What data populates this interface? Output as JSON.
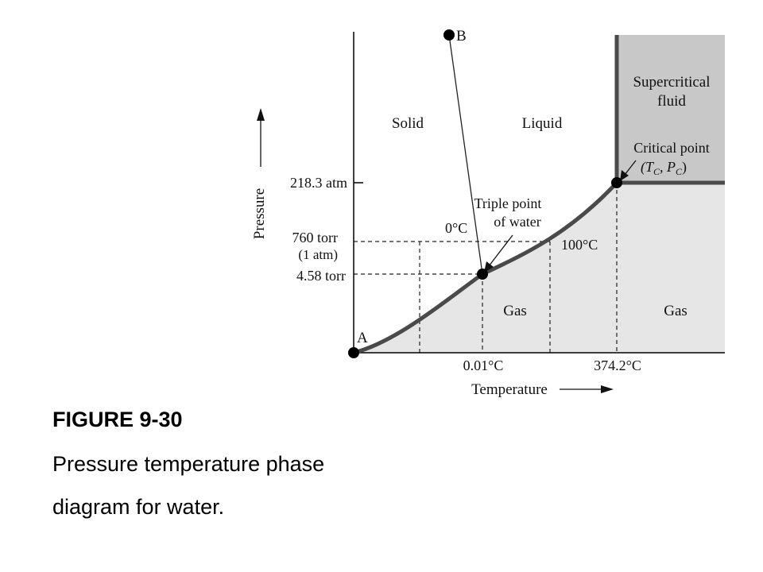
{
  "diagram": {
    "axes": {
      "y_label": "Pressure",
      "x_label": "Temperature",
      "y_ticks": {
        "critical": "218.3 atm",
        "atm": "760 torr",
        "atm_sub": "(1 atm)",
        "triple": "4.58 torr"
      },
      "x_ticks": {
        "triple": "0.01°C",
        "critical": "374.2°C"
      }
    },
    "regions": {
      "solid": "Solid",
      "liquid": "Liquid",
      "gas_left": "Gas",
      "gas_right": "Gas",
      "supercritical_line1": "Supercritical",
      "supercritical_line2": "fluid"
    },
    "points": {
      "a": "A",
      "b": "B",
      "triple_line1": "Triple point",
      "triple_line2": "of water",
      "critical_line1": "Critical point",
      "critical_line2": "(T",
      "critical_sub_c1": "C",
      "critical_mid": ", P",
      "critical_sub_c2": "C",
      "critical_close": ")"
    },
    "annotations": {
      "zero_c": "0°C",
      "hundred_c": "100°C"
    },
    "colors": {
      "curve": "#4a4a4a",
      "supercritical_fill": "#c8c8c8",
      "gas_fill": "#e6e6e6",
      "axis": "#000000"
    }
  },
  "caption": {
    "figure": "FIGURE 9-30",
    "line1": "Pressure temperature phase",
    "line2": "diagram for water."
  }
}
